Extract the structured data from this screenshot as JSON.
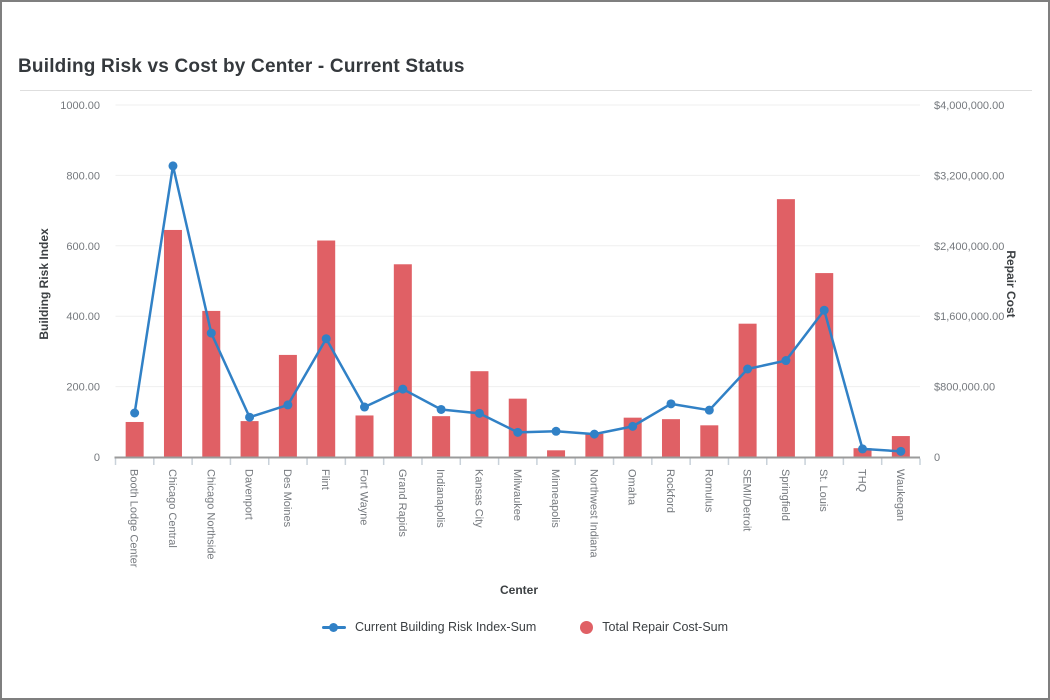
{
  "header": {
    "title": "Building Risk vs Cost by Center - Current Status"
  },
  "chart_data": {
    "type": "combo-bar-line",
    "title": "Building Risk vs Cost by Center - Current Status",
    "grid": true,
    "legend_position": "bottom",
    "categories": [
      "Booth Lodge Center",
      "Chicago Central",
      "Chicago Northside",
      "Davenport",
      "Des Moines",
      "Flint",
      "Fort Wayne",
      "Grand Rapids",
      "Indianapolis",
      "Kansas City",
      "Milwaukee",
      "Minneapolis",
      "Northwest Indiana",
      "Omaha",
      "Rockford",
      "Romulus",
      "SEMI/Detroit",
      "Springfield",
      "St. Louis",
      "THQ",
      "Waukegan"
    ],
    "series": [
      {
        "name": "Current Building Risk Index-Sum",
        "type": "line",
        "axis": "left",
        "color": "#3181c6",
        "values": [
          125,
          827,
          352,
          113,
          148,
          336,
          142,
          193,
          135,
          124,
          70,
          73,
          65,
          87,
          151,
          133,
          250,
          274,
          417,
          23,
          16
        ]
      },
      {
        "name": "Total Repair Cost-Sum",
        "type": "bar",
        "axis": "right",
        "color": "#e06065",
        "values": [
          398000,
          2580000,
          1660000,
          408000,
          1160000,
          2460000,
          472000,
          2190000,
          464000,
          975000,
          663000,
          76000,
          264000,
          447000,
          430000,
          360000,
          1515000,
          2930000,
          2090000,
          100000,
          238000
        ]
      }
    ],
    "left_axis": {
      "title": "Building Risk Index",
      "min": 0,
      "max": 1000,
      "tick_step": 200,
      "tick_labels": [
        "0",
        "200.00",
        "400.00",
        "600.00",
        "800.00",
        "1000.00"
      ]
    },
    "right_axis": {
      "title": "Repair Cost",
      "min": 0,
      "max": 4000000,
      "tick_step": 800000,
      "tick_labels": [
        "0",
        "$800,000.00",
        "$1,600,000.00",
        "$2,400,000.00",
        "$3,200,000.00",
        "$4,000,000.00"
      ]
    },
    "x_axis": {
      "title": "Center"
    }
  },
  "colors": {
    "grid": "#efefef",
    "axis_line": "#9b9b9b",
    "tick_mark": "#c9d2da",
    "tick_label": "#75797e",
    "title_text": "#35393d"
  }
}
